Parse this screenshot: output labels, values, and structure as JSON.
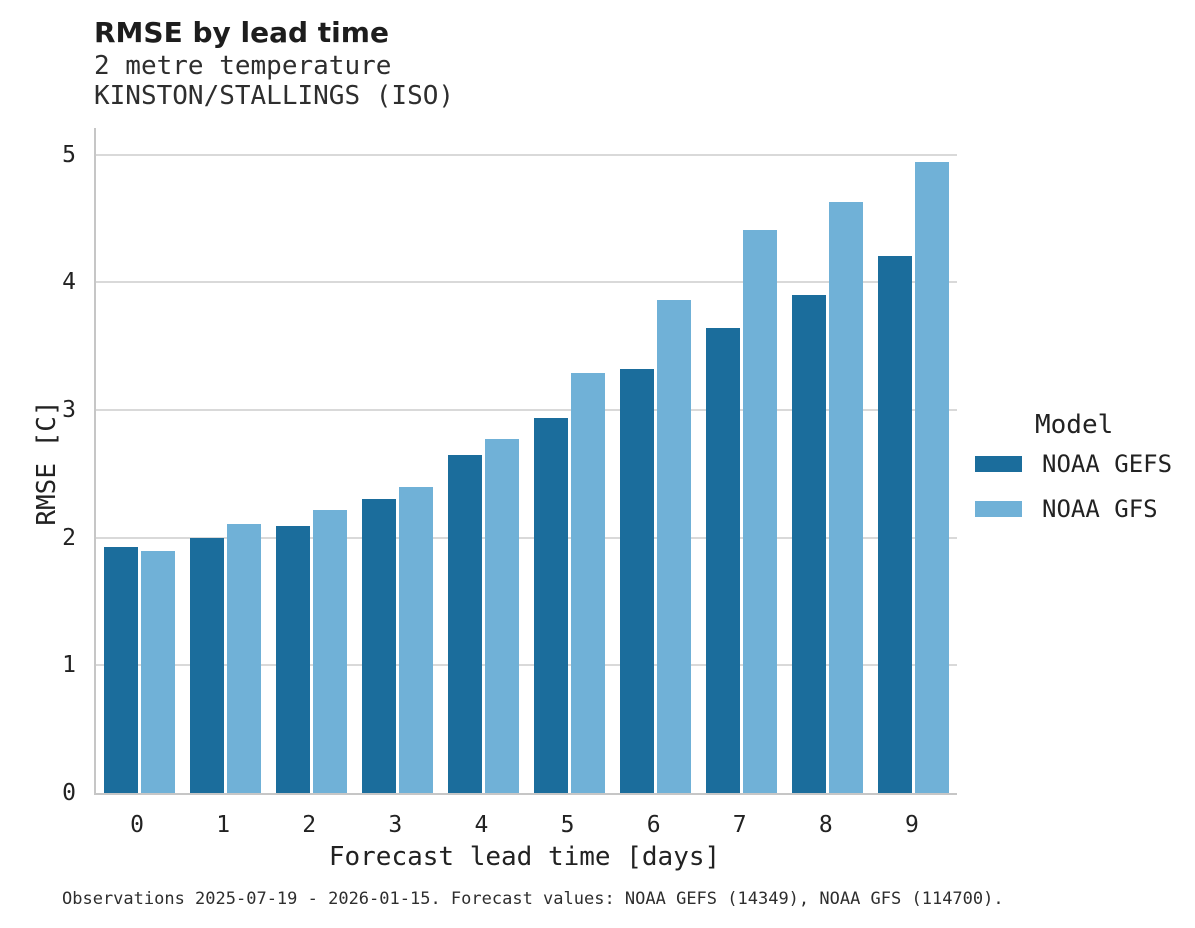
{
  "header": {
    "title": "RMSE by lead time",
    "subtitle_line1": "2 metre temperature",
    "subtitle_line2": "KINSTON/STALLINGS (ISO)"
  },
  "chart_data": {
    "type": "bar",
    "title": "RMSE by lead time",
    "subtitle_lines": [
      "2 metre temperature",
      "KINSTON/STALLINGS (ISO)"
    ],
    "categories": [
      "0",
      "1",
      "2",
      "3",
      "4",
      "5",
      "6",
      "7",
      "8",
      "9"
    ],
    "series": [
      {
        "name": "NOAA GEFS",
        "color": "#1b6d9c",
        "values": [
          1.93,
          2.0,
          2.09,
          2.3,
          2.65,
          2.94,
          3.32,
          3.64,
          3.9,
          4.21
        ]
      },
      {
        "name": "NOAA GFS",
        "color": "#70b1d7",
        "values": [
          1.9,
          2.11,
          2.22,
          2.4,
          2.77,
          3.29,
          3.86,
          4.41,
          4.63,
          4.94
        ]
      }
    ],
    "xlabel": "Forecast lead time [days]",
    "ylabel": "RMSE [C]",
    "ylim": [
      0,
      5.21
    ],
    "yticks": [
      0,
      1,
      2,
      3,
      4,
      5
    ],
    "grid": "horizontal",
    "legend_title": "Model",
    "legend_position": "right"
  },
  "legend": {
    "title": "Model",
    "entries": [
      {
        "label": "NOAA GEFS",
        "color": "#1b6d9c"
      },
      {
        "label": "NOAA GFS",
        "color": "#70b1d7"
      }
    ]
  },
  "footer": {
    "caption": "Observations 2025-07-19 - 2026-01-15. Forecast values: NOAA GEFS (14349), NOAA GFS (114700)."
  }
}
